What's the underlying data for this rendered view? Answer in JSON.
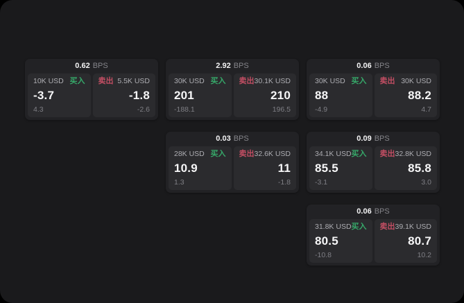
{
  "theme": {
    "page_background": "#000000",
    "surface_background": "#1a1a1c",
    "card_background": "#222225",
    "panel_background": "#2b2b2e",
    "buy_color": "#36a869",
    "sell_color": "#c24e63",
    "primary_text": "#f6f6f7",
    "muted_text": "#85858a"
  },
  "cards": [
    {
      "grid": {
        "row": 1,
        "col": 1
      },
      "bps": "0.62",
      "unit": "BPS",
      "buy": {
        "amount": "10K USD",
        "label": "买入",
        "price": "-3.7",
        "delta": "4.3"
      },
      "sell": {
        "label": "卖出",
        "amount": "5.5K USD",
        "price": "-1.8",
        "delta": "-2.6"
      }
    },
    {
      "grid": {
        "row": 1,
        "col": 2
      },
      "bps": "2.92",
      "unit": "BPS",
      "buy": {
        "amount": "30K USD",
        "label": "买入",
        "price": "201",
        "delta": "-188.1"
      },
      "sell": {
        "label": "卖出",
        "amount": "30.1K USD",
        "price": "210",
        "delta": "196.5"
      }
    },
    {
      "grid": {
        "row": 1,
        "col": 3
      },
      "bps": "0.06",
      "unit": "BPS",
      "buy": {
        "amount": "30K USD",
        "label": "买入",
        "price": "88",
        "delta": "-4.9"
      },
      "sell": {
        "label": "卖出",
        "amount": "30K USD",
        "price": "88.2",
        "delta": "4.7"
      }
    },
    {
      "grid": {
        "row": 2,
        "col": 2
      },
      "bps": "0.03",
      "unit": "BPS",
      "buy": {
        "amount": "28K USD",
        "label": "买入",
        "price": "10.9",
        "delta": "1.3"
      },
      "sell": {
        "label": "卖出",
        "amount": "32.6K USD",
        "price": "11",
        "delta": "-1.8"
      }
    },
    {
      "grid": {
        "row": 2,
        "col": 3
      },
      "bps": "0.09",
      "unit": "BPS",
      "buy": {
        "amount": "34.1K USD",
        "label": "买入",
        "price": "85.5",
        "delta": "-3.1"
      },
      "sell": {
        "label": "卖出",
        "amount": "32.8K USD",
        "price": "85.8",
        "delta": "3.0"
      }
    },
    {
      "grid": {
        "row": 3,
        "col": 3
      },
      "bps": "0.06",
      "unit": "BPS",
      "buy": {
        "amount": "31.8K USD",
        "label": "买入",
        "price": "80.5",
        "delta": "-10.8"
      },
      "sell": {
        "label": "卖出",
        "amount": "39.1K USD",
        "price": "80.7",
        "delta": "10.2"
      }
    }
  ]
}
